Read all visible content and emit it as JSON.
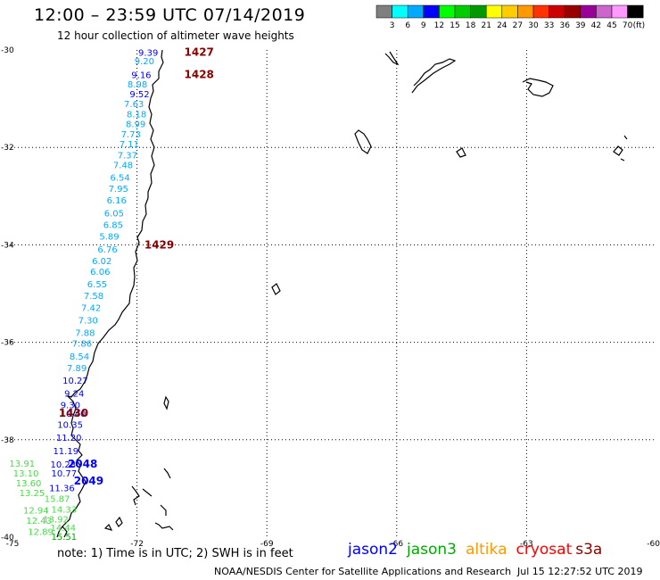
{
  "header": {
    "title": "12:00 – 23:59 UTC 07/14/2019",
    "subtitle": "12 hour collection of altimeter wave heights"
  },
  "legend": {
    "ticks": [
      "3",
      "6",
      "9",
      "12",
      "15",
      "18",
      "21",
      "24",
      "27",
      "30",
      "33",
      "36",
      "39",
      "42",
      "45",
      "70"
    ],
    "unit": "(ft)",
    "colors": [
      "#7f7f7f",
      "#00ffff",
      "#00aaff",
      "#0000ff",
      "#00ff00",
      "#00cc00",
      "#009900",
      "#ffff00",
      "#ffcc00",
      "#ff9900",
      "#ff3300",
      "#cc0000",
      "#990000",
      "#990099",
      "#cc66cc",
      "#ff99ff",
      "#000000"
    ]
  },
  "axes": {
    "lat_labels": [
      "-30",
      "-32",
      "-34",
      "-36",
      "-38",
      "-40"
    ],
    "lon_labels": [
      "-75",
      "-72",
      "-69",
      "-66",
      "-63",
      "-60"
    ]
  },
  "footer": {
    "note": "note:  1) Time is in UTC; 2) SWH is in feet",
    "credit": "NOAA/NESDIS Center for Satellite Applications and Research",
    "timestamp": "Jul 15 12:27:52 UTC 2019",
    "satellites": [
      {
        "name": "jason2",
        "color": "#0000ff"
      },
      {
        "name": "jason3",
        "color": "#00aa00"
      },
      {
        "name": "altika",
        "color": "#ff9900"
      },
      {
        "name": "cryosat",
        "color": "#ff0000"
      },
      {
        "name": "s3a",
        "color": "#880000"
      }
    ]
  },
  "time_labels": [
    {
      "text": "1427",
      "lon": -70.91,
      "lat": -30.05
    },
    {
      "text": "1428",
      "lon": -70.91,
      "lat": -30.5
    },
    {
      "text": "1429",
      "lon": -71.83,
      "lat": -34.0
    },
    {
      "text": "1430",
      "lon": -73.81,
      "lat": -37.45
    },
    {
      "text": "2048",
      "lon": -73.6,
      "lat": -38.5
    },
    {
      "text": "2049",
      "lon": -73.46,
      "lat": -38.85
    }
  ],
  "wave_heights": [
    {
      "v": "9.39",
      "lon": -71.97,
      "lat": -30.05,
      "c": "#0000ff"
    },
    {
      "v": "9.20",
      "lon": -72.06,
      "lat": -30.22,
      "c": "#00aaff"
    },
    {
      "v": "9.16",
      "lon": -72.13,
      "lat": -30.5,
      "c": "#0000ff"
    },
    {
      "v": "8.98",
      "lon": -72.22,
      "lat": -30.7,
      "c": "#00aaff"
    },
    {
      "v": "9.52",
      "lon": -72.17,
      "lat": -30.9,
      "c": "#0000ff"
    },
    {
      "v": "7.63",
      "lon": -72.3,
      "lat": -31.1,
      "c": "#00aaff"
    },
    {
      "v": "8.18",
      "lon": -72.24,
      "lat": -31.31,
      "c": "#00aaff"
    },
    {
      "v": "8.99",
      "lon": -72.26,
      "lat": -31.51,
      "c": "#00aaff"
    },
    {
      "v": "7.73",
      "lon": -72.37,
      "lat": -31.72,
      "c": "#00aaff"
    },
    {
      "v": "7.11",
      "lon": -72.41,
      "lat": -31.92,
      "c": "#00aaff"
    },
    {
      "v": "7.37",
      "lon": -72.45,
      "lat": -32.15,
      "c": "#00aaff"
    },
    {
      "v": "7.48",
      "lon": -72.55,
      "lat": -32.35,
      "c": "#00aaff"
    },
    {
      "v": "6.54",
      "lon": -72.62,
      "lat": -32.61,
      "c": "#00aaff"
    },
    {
      "v": "7.95",
      "lon": -72.66,
      "lat": -32.84,
      "c": "#00aaff"
    },
    {
      "v": "6.16",
      "lon": -72.7,
      "lat": -33.08,
      "c": "#00aaff"
    },
    {
      "v": "6.05",
      "lon": -72.76,
      "lat": -33.34,
      "c": "#00aaff"
    },
    {
      "v": "6.85",
      "lon": -72.78,
      "lat": -33.58,
      "c": "#00aaff"
    },
    {
      "v": "5.89",
      "lon": -72.87,
      "lat": -33.82,
      "c": "#00aaff"
    },
    {
      "v": "6.76",
      "lon": -72.91,
      "lat": -34.08,
      "c": "#00aaff"
    },
    {
      "v": "6.02",
      "lon": -73.04,
      "lat": -34.32,
      "c": "#00aaff"
    },
    {
      "v": "6.06",
      "lon": -73.08,
      "lat": -34.54,
      "c": "#00aaff"
    },
    {
      "v": "6.55",
      "lon": -73.15,
      "lat": -34.8,
      "c": "#00aaff"
    },
    {
      "v": "7.58",
      "lon": -73.23,
      "lat": -35.04,
      "c": "#00aaff"
    },
    {
      "v": "7.42",
      "lon": -73.29,
      "lat": -35.28,
      "c": "#00aaff"
    },
    {
      "v": "7.30",
      "lon": -73.36,
      "lat": -35.54,
      "c": "#00aaff"
    },
    {
      "v": "7.88",
      "lon": -73.43,
      "lat": -35.8,
      "c": "#00aaff"
    },
    {
      "v": "7.86",
      "lon": -73.5,
      "lat": -36.02,
      "c": "#00aaff"
    },
    {
      "v": "8.54",
      "lon": -73.56,
      "lat": -36.28,
      "c": "#00aaff"
    },
    {
      "v": "7.89",
      "lon": -73.62,
      "lat": -36.52,
      "c": "#00aaff"
    },
    {
      "v": "10.27",
      "lon": -73.72,
      "lat": -36.78,
      "c": "#0000ff"
    },
    {
      "v": "9.24",
      "lon": -73.68,
      "lat": -37.04,
      "c": "#0000ff"
    },
    {
      "v": "9.30",
      "lon": -73.77,
      "lat": -37.28,
      "c": "#0000ff"
    },
    {
      "v": "10.40",
      "lon": -73.77,
      "lat": -37.45,
      "c": "#0000ff"
    },
    {
      "v": "10.35",
      "lon": -73.84,
      "lat": -37.68,
      "c": "#0000ff"
    },
    {
      "v": "11.20",
      "lon": -73.87,
      "lat": -37.95,
      "c": "#0000ff"
    },
    {
      "v": "11.19",
      "lon": -73.94,
      "lat": -38.22,
      "c": "#0000ff"
    },
    {
      "v": "10.28",
      "lon": -74.0,
      "lat": -38.5,
      "c": "#0000ff"
    },
    {
      "v": "13.91",
      "lon": -74.95,
      "lat": -38.48,
      "c": "#44dd44"
    },
    {
      "v": "13.10",
      "lon": -74.86,
      "lat": -38.68,
      "c": "#44dd44"
    },
    {
      "v": "10.77",
      "lon": -73.98,
      "lat": -38.68,
      "c": "#0000ff"
    },
    {
      "v": "13.60",
      "lon": -74.8,
      "lat": -38.88,
      "c": "#44dd44"
    },
    {
      "v": "11.36",
      "lon": -74.03,
      "lat": -38.98,
      "c": "#0000ff"
    },
    {
      "v": "13.25",
      "lon": -74.72,
      "lat": -39.08,
      "c": "#44dd44"
    },
    {
      "v": "15.87",
      "lon": -74.14,
      "lat": -39.2,
      "c": "#44dd44"
    },
    {
      "v": "14.33",
      "lon": -73.98,
      "lat": -39.42,
      "c": "#44dd44"
    },
    {
      "v": "12.94",
      "lon": -74.63,
      "lat": -39.44,
      "c": "#44dd44"
    },
    {
      "v": "13.92",
      "lon": -74.17,
      "lat": -39.62,
      "c": "#44dd44"
    },
    {
      "v": "12.43",
      "lon": -74.56,
      "lat": -39.65,
      "c": "#44dd44"
    },
    {
      "v": "14.44",
      "lon": -74.0,
      "lat": -39.8,
      "c": "#44dd44"
    },
    {
      "v": "12.89",
      "lon": -74.52,
      "lat": -39.88,
      "c": "#44dd44"
    },
    {
      "v": "15.51",
      "lon": -73.98,
      "lat": -39.98,
      "c": "#00aa00"
    }
  ],
  "map": {
    "lon_min": -75,
    "lon_max": -60,
    "lat_min": -40,
    "lat_max": -30,
    "gridlines": "dotted"
  }
}
